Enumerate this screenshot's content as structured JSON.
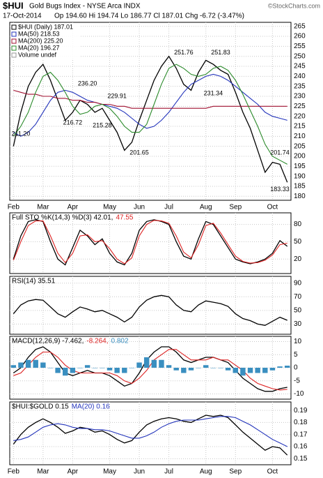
{
  "header": {
    "symbol": "$HUI",
    "title": "Gold Bugs Index - NYSE Arca INDX",
    "credit": "©StockCharts.com",
    "date": "17-Oct-2014",
    "quote": "Op 194.60 Hi 194.74 Lo 186.77 Cl 187.01 Chg -6.72 (-3.47%)"
  },
  "chart_data": [
    {
      "type": "line",
      "x_labels": true,
      "categories": [
        "Feb",
        null,
        null,
        null,
        "Mar",
        null,
        null,
        null,
        "Apr",
        null,
        null,
        null,
        null,
        "May",
        null,
        null,
        null,
        "Jun",
        null,
        null,
        null,
        "Jul",
        null,
        null,
        null,
        null,
        "Aug",
        null,
        null,
        null,
        "Sep",
        null,
        null,
        null,
        null,
        "Oct",
        null,
        null
      ],
      "ylim": [
        178,
        267
      ],
      "yticks": [
        180,
        185,
        190,
        195,
        200,
        205,
        210,
        215,
        220,
        225,
        230,
        235,
        240,
        245,
        250,
        255,
        260,
        265
      ],
      "grid": true,
      "series": [
        {
          "name": "$HUI (Daily) 187.01",
          "color": "#000000",
          "values": [
            205,
            222,
            235,
            242,
            246,
            238,
            228,
            218,
            222,
            228,
            226,
            222,
            224,
            218,
            212,
            203,
            207,
            218,
            228,
            238,
            245,
            250,
            244,
            236,
            233,
            242,
            248,
            246,
            243,
            241,
            232,
            222,
            214,
            203,
            192,
            197,
            196,
            187
          ]
        },
        {
          "name": "MA(50) 218.53",
          "color": "#2233bb",
          "values": [
            212,
            210,
            212,
            216,
            222,
            228,
            232,
            233,
            232,
            230,
            228,
            227,
            226,
            225,
            224,
            222,
            219,
            216,
            214,
            215,
            218,
            222,
            227,
            232,
            236,
            238,
            240,
            241,
            240,
            238,
            235,
            232,
            229,
            226,
            222,
            220,
            219,
            218
          ]
        },
        {
          "name": "MA(200) 225.20",
          "color": "#a01030",
          "values": [
            233,
            232,
            231,
            231,
            230,
            230,
            229,
            229,
            228,
            228,
            227,
            227,
            226,
            226,
            225,
            225,
            224,
            224,
            224,
            224,
            224,
            224,
            224,
            224,
            224,
            224,
            224,
            225,
            225,
            225,
            225,
            225,
            225,
            225,
            225,
            225,
            225,
            225
          ]
        },
        {
          "name": "MA(20) 196.27",
          "color": "#2a8a2a",
          "values": [
            210,
            215,
            222,
            232,
            240,
            242,
            238,
            232,
            225,
            221,
            222,
            225,
            226,
            224,
            220,
            215,
            212,
            212,
            216,
            226,
            236,
            244,
            246,
            244,
            241,
            240,
            241,
            244,
            245,
            243,
            238,
            231,
            223,
            215,
            206,
            200,
            198,
            196
          ]
        }
      ],
      "legend_notes": [
        "Volume undef"
      ],
      "annotations": [
        {
          "x": 1,
          "value": 211.2,
          "label": "211.20"
        },
        {
          "x": 10,
          "value": 236.2,
          "label": "236.20"
        },
        {
          "x": 14,
          "value": 229.91,
          "label": "229.91"
        },
        {
          "x": 8,
          "value": 216.72,
          "label": "216.72"
        },
        {
          "x": 12,
          "value": 215.28,
          "label": "215.28"
        },
        {
          "x": 17,
          "value": 201.65,
          "label": "201.65"
        },
        {
          "x": 23,
          "value": 251.76,
          "label": "251.76"
        },
        {
          "x": 28,
          "value": 251.83,
          "label": "251.83"
        },
        {
          "x": 27,
          "value": 231.34,
          "label": "231.34"
        },
        {
          "x": 36,
          "value": 201.74,
          "label": "201.74"
        },
        {
          "x": 36,
          "value": 183.33,
          "label": "183.33"
        }
      ]
    },
    {
      "type": "line",
      "categories": [
        "Feb",
        null,
        null,
        null,
        "Mar",
        null,
        null,
        null,
        "Apr",
        null,
        null,
        null,
        null,
        "May",
        null,
        null,
        null,
        "Jun",
        null,
        null,
        null,
        "Jul",
        null,
        null,
        null,
        null,
        "Aug",
        null,
        null,
        null,
        "Sep",
        null,
        null,
        null,
        null,
        "Oct",
        null,
        null
      ],
      "ylim": [
        -5,
        100
      ],
      "yticks": [
        20,
        50,
        80
      ],
      "grid": true,
      "series": [
        {
          "name": "Full STO %K(14,3) %D(3) 42.01,",
          "color": "#000000",
          "values": [
            20,
            60,
            85,
            88,
            85,
            50,
            20,
            10,
            40,
            70,
            60,
            45,
            55,
            30,
            15,
            10,
            30,
            70,
            85,
            88,
            85,
            80,
            50,
            25,
            20,
            55,
            85,
            80,
            60,
            40,
            20,
            15,
            12,
            15,
            20,
            30,
            52,
            42.01
          ]
        },
        {
          "name": "47.55",
          "color": "#dd2222",
          "values": [
            18,
            50,
            78,
            86,
            86,
            60,
            30,
            14,
            30,
            60,
            62,
            50,
            52,
            38,
            20,
            12,
            22,
            60,
            80,
            87,
            86,
            82,
            60,
            32,
            22,
            45,
            78,
            82,
            65,
            45,
            25,
            16,
            13,
            14,
            18,
            27,
            45,
            47.55
          ]
        }
      ]
    },
    {
      "type": "line",
      "categories": [
        "Feb",
        null,
        null,
        null,
        "Mar",
        null,
        null,
        null,
        "Apr",
        null,
        null,
        null,
        null,
        "May",
        null,
        null,
        null,
        "Jun",
        null,
        null,
        null,
        "Jul",
        null,
        null,
        null,
        null,
        "Aug",
        null,
        null,
        null,
        "Sep",
        null,
        null,
        null,
        null,
        "Oct",
        null,
        null
      ],
      "ylim": [
        15,
        100
      ],
      "yticks": [
        30,
        50,
        70,
        90
      ],
      "grid": true,
      "series": [
        {
          "name": "RSI(14) 35.51",
          "color": "#000000",
          "values": [
            45,
            58,
            64,
            66,
            65,
            55,
            45,
            40,
            48,
            55,
            52,
            48,
            50,
            45,
            40,
            33,
            40,
            55,
            65,
            70,
            72,
            70,
            58,
            50,
            48,
            58,
            64,
            62,
            60,
            56,
            45,
            38,
            35,
            30,
            28,
            34,
            40,
            35.51
          ]
        }
      ]
    },
    {
      "type": "line",
      "categories": [
        "Feb",
        null,
        null,
        null,
        "Mar",
        null,
        null,
        null,
        "Apr",
        null,
        null,
        null,
        null,
        "May",
        null,
        null,
        null,
        "Jun",
        null,
        null,
        null,
        "Jul",
        null,
        null,
        null,
        null,
        "Aug",
        null,
        null,
        null,
        "Sep",
        null,
        null,
        null,
        null,
        "Oct",
        null,
        null
      ],
      "ylim": [
        -12,
        12
      ],
      "yticks": [
        10,
        5,
        0,
        -5,
        -10
      ],
      "grid": true,
      "series": [
        {
          "name": "MACD(12,26,9) -7.462,",
          "color": "#000000",
          "values": [
            -2,
            0,
            4,
            7,
            8,
            6,
            2,
            -2,
            -3,
            -2,
            -1,
            -2,
            -2,
            -3,
            -5,
            -7,
            -6,
            -2,
            3,
            6,
            8,
            8,
            6,
            3,
            2,
            3,
            4,
            4,
            3,
            2,
            -1,
            -4,
            -6,
            -8,
            -9,
            -9,
            -8,
            -7.462
          ]
        },
        {
          "name": "-8.264,",
          "color": "#dd2222",
          "values": [
            -3,
            -2,
            1,
            4,
            6,
            6,
            4,
            1,
            -1,
            -2,
            -2,
            -2,
            -2,
            -2,
            -3,
            -5,
            -6,
            -4,
            -1,
            3,
            5,
            7,
            7,
            5,
            3,
            3,
            3,
            4,
            3,
            3,
            1,
            -1,
            -4,
            -6,
            -7,
            -8,
            -8.5,
            -8.264
          ]
        },
        {
          "name": "0.802",
          "color": "#3a8fc0",
          "type": "bar",
          "values": [
            1,
            2,
            3,
            3,
            2,
            0,
            -2,
            -3,
            -2,
            0,
            1,
            0,
            0,
            -1,
            -2,
            -2,
            0,
            2,
            4,
            3,
            3,
            1,
            -1,
            -2,
            -1,
            0,
            1,
            0,
            0,
            -1,
            -2,
            -3,
            -2,
            -2,
            -2,
            -1,
            0.5,
            0.802
          ]
        }
      ]
    },
    {
      "type": "line",
      "x_labels": true,
      "categories": [
        "Feb",
        null,
        null,
        null,
        "Mar",
        null,
        null,
        null,
        "Apr",
        null,
        null,
        null,
        null,
        "May",
        null,
        null,
        null,
        "Jun",
        null,
        null,
        null,
        "Jul",
        null,
        null,
        null,
        null,
        "Aug",
        null,
        null,
        null,
        "Sep",
        null,
        null,
        null,
        null,
        "Oct",
        null,
        null
      ],
      "ylim": [
        0.145,
        0.197
      ],
      "yticks": [
        0.15,
        0.16,
        0.17,
        0.18,
        0.19
      ],
      "grid": true,
      "series": [
        {
          "name": "$HUI:$GOLD 0.15",
          "color": "#000000",
          "values": [
            0.162,
            0.17,
            0.176,
            0.18,
            0.183,
            0.18,
            0.176,
            0.171,
            0.173,
            0.176,
            0.175,
            0.172,
            0.173,
            0.17,
            0.166,
            0.163,
            0.165,
            0.172,
            0.178,
            0.181,
            0.183,
            0.184,
            0.183,
            0.181,
            0.18,
            0.183,
            0.186,
            0.185,
            0.186,
            0.184,
            0.178,
            0.172,
            0.167,
            0.162,
            0.157,
            0.16,
            0.159,
            0.153
          ]
        },
        {
          "name": "MA(20) 0.16",
          "color": "#2233bb",
          "values": [
            0.165,
            0.166,
            0.168,
            0.172,
            0.176,
            0.178,
            0.179,
            0.178,
            0.176,
            0.175,
            0.175,
            0.174,
            0.174,
            0.173,
            0.171,
            0.169,
            0.167,
            0.167,
            0.169,
            0.172,
            0.176,
            0.179,
            0.181,
            0.182,
            0.182,
            0.182,
            0.183,
            0.184,
            0.185,
            0.185,
            0.184,
            0.181,
            0.178,
            0.174,
            0.17,
            0.166,
            0.163,
            0.16
          ]
        }
      ]
    }
  ]
}
